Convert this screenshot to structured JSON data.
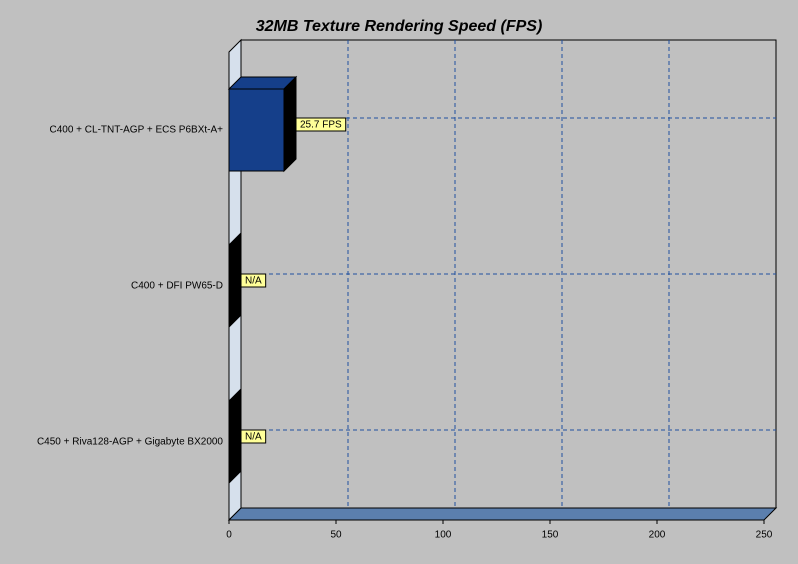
{
  "chart_data": {
    "type": "bar",
    "orientation": "horizontal",
    "title": "32MB Texture Rendering Speed (FPS)",
    "categories": [
      "C400 + CL-TNT-AGP + ECS P6BXt-A+",
      "C400 + DFI PW65-D",
      "C450 + Riva128-AGP + Gigabyte BX2000"
    ],
    "values": [
      25.7,
      null,
      null
    ],
    "value_labels": [
      "25.7 FPS",
      "N/A",
      "N/A"
    ],
    "color": "#153f8a",
    "xlim": [
      0,
      250
    ],
    "xticks": [
      0,
      50,
      100,
      150,
      200,
      250
    ],
    "grid": true
  }
}
